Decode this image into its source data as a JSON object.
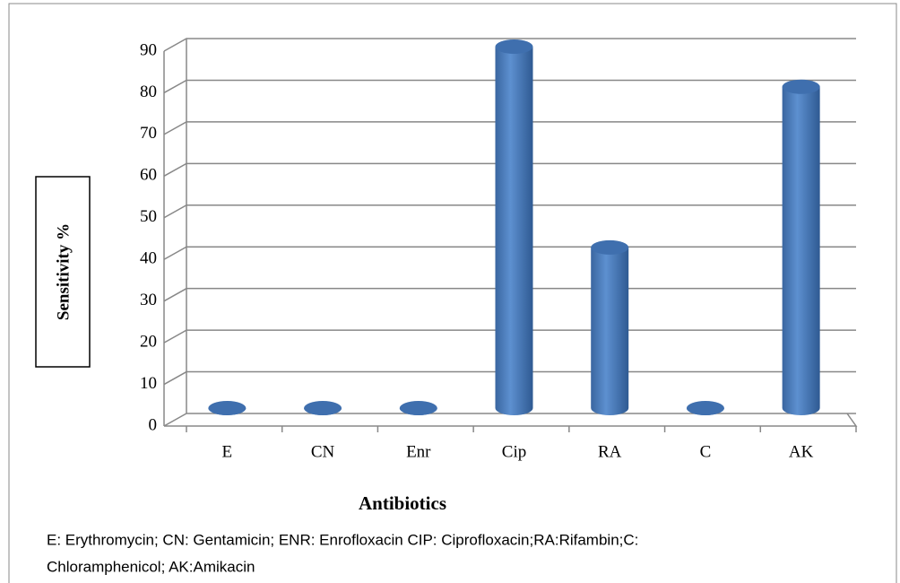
{
  "chart_data": {
    "type": "bar",
    "categories": [
      "E",
      "CN",
      "Enr",
      "Cip",
      "RA",
      "C",
      "AK"
    ],
    "values": [
      0,
      0,
      0,
      90,
      40,
      0,
      80
    ],
    "color": "#4a7ebb",
    "ylim": [
      0,
      90
    ],
    "yticks": [
      0,
      10,
      20,
      30,
      40,
      50,
      60,
      70,
      80,
      90
    ],
    "grid": true,
    "y_label": "Sensitivity %",
    "x_label": "Antibiotics",
    "footnote": [
      "E: Erythromycin; CN: Gentamicin; ENR: Enrofloxacin CIP: Ciprofloxacin;RA:Rifambin;C:",
      "Chloramphenicol; AK:Amikacin"
    ]
  }
}
